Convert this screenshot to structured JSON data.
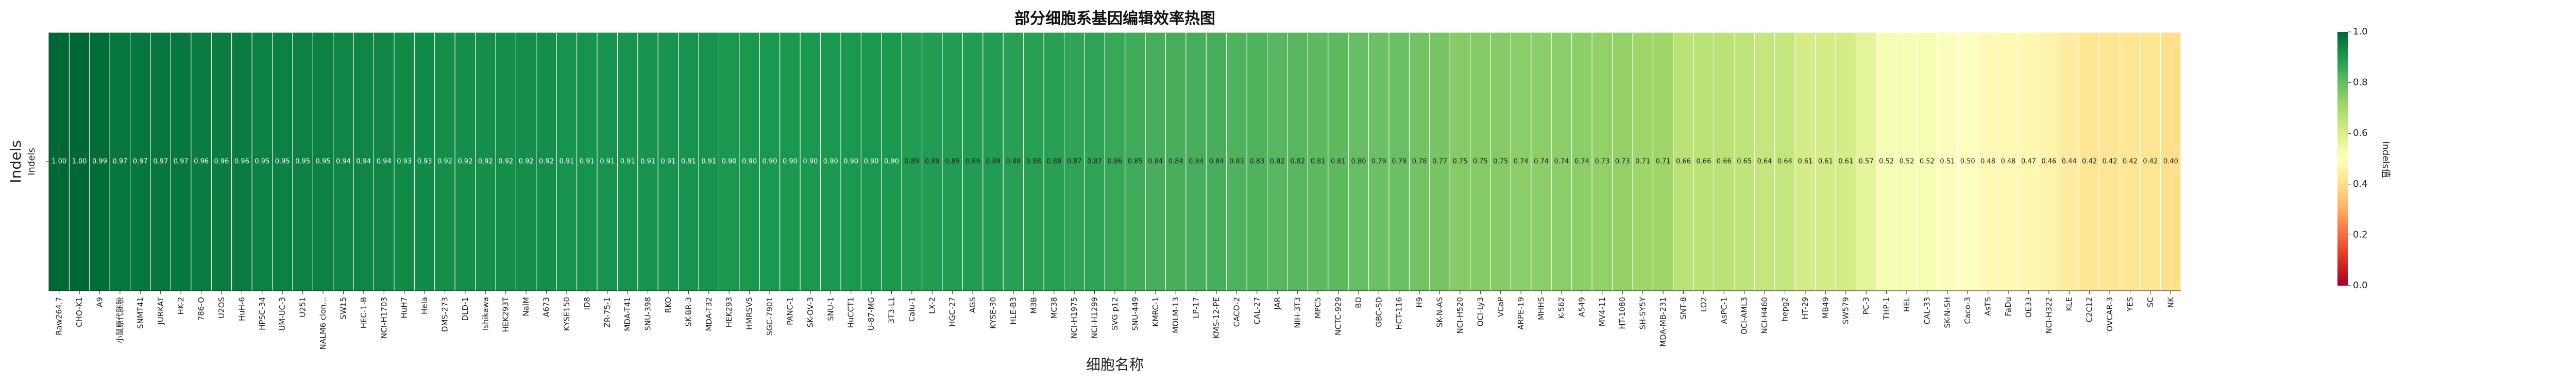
{
  "chart_data": {
    "type": "heatmap",
    "title": "部分细胞系基因编辑效率热图",
    "xlabel": "细胞名称",
    "ylabel": "Indels",
    "y_categories": [
      "Indels"
    ],
    "colorbar": {
      "label": "Indels值",
      "range": [
        0.0,
        1.0
      ],
      "ticks": [
        "0.0",
        "0.2",
        "0.4",
        "0.6",
        "0.8",
        "1.0"
      ],
      "colormap": "RdYlGn"
    },
    "value_labels": [
      "1.00",
      "1.00",
      "0.99",
      "0.97",
      "0.97",
      "0.97",
      "0.97",
      "0.96",
      "0.96",
      "0.96",
      "0.95",
      "0.95",
      "0.95",
      "0.95",
      "0.94",
      "0.94",
      "0.94",
      "0.93",
      "0.93",
      "0.92",
      "0.92",
      "0.92",
      "0.92",
      "0.92",
      "0.92",
      "0.91",
      "0.91",
      "0.91",
      "0.91",
      "0.91",
      "0.91",
      "0.91",
      "0.91",
      "0.90",
      "0.90",
      "0.90",
      "0.90",
      "0.90",
      "0.90",
      "0.90",
      "0.90",
      "0.90",
      "0.89",
      "0.89",
      "0.89",
      "0.89",
      "0.89",
      "0.88",
      "0.88",
      "0.88",
      "0.87",
      "0.87",
      "0.86",
      "0.85",
      "0.84",
      "0.84",
      "0.84",
      "0.84",
      "0.83",
      "0.83",
      "0.82",
      "0.82",
      "0.81",
      "0.81",
      "0.80",
      "0.79",
      "0.79",
      "0.78",
      "0.77",
      "0.75",
      "0.75",
      "0.75",
      "0.74",
      "0.74",
      "0.74",
      "0.74",
      "0.73",
      "0.73",
      "0.71",
      "0.71",
      "0.66",
      "0.66",
      "0.66",
      "0.65",
      "0.64",
      "0.64",
      "0.61",
      "0.61",
      "0.61",
      "0.57",
      "0.52",
      "0.52",
      "0.52",
      "0.51",
      "0.50",
      "0.48",
      "0.48",
      "0.47",
      "0.46",
      "0.44",
      "0.42",
      "0.42",
      "0.42",
      "0.42",
      "0.40"
    ],
    "columns": [
      {
        "name": "Raw264.7",
        "value": 1.0
      },
      {
        "name": "CHO-K1",
        "value": 1.0
      },
      {
        "name": "A9",
        "value": 0.99
      },
      {
        "name": "小鼠原代胚胎",
        "value": 0.97
      },
      {
        "name": "SNMT41",
        "value": 0.97
      },
      {
        "name": "JURKAT",
        "value": 0.97
      },
      {
        "name": "HK-2",
        "value": 0.97
      },
      {
        "name": "786-O",
        "value": 0.96
      },
      {
        "name": "U2OS",
        "value": 0.96
      },
      {
        "name": "HuH-6",
        "value": 0.96
      },
      {
        "name": "HPSC-34",
        "value": 0.95
      },
      {
        "name": "UM-UC-3",
        "value": 0.95
      },
      {
        "name": "U251",
        "value": 0.95
      },
      {
        "name": "NALM6 clon...",
        "value": 0.95
      },
      {
        "name": "SW15",
        "value": 0.94
      },
      {
        "name": "HEC-1-B",
        "value": 0.94
      },
      {
        "name": "NCI-H1703",
        "value": 0.94
      },
      {
        "name": "HuH7",
        "value": 0.93
      },
      {
        "name": "Hela",
        "value": 0.93
      },
      {
        "name": "DMS-273",
        "value": 0.92
      },
      {
        "name": "DLD-1",
        "value": 0.92
      },
      {
        "name": "Ishikawa",
        "value": 0.92
      },
      {
        "name": "HEK293T",
        "value": 0.92
      },
      {
        "name": "NalM",
        "value": 0.92
      },
      {
        "name": "A673",
        "value": 0.92
      },
      {
        "name": "KYSE150",
        "value": 0.91
      },
      {
        "name": "ID8",
        "value": 0.91
      },
      {
        "name": "ZR-75-1",
        "value": 0.91
      },
      {
        "name": "MDA-T41",
        "value": 0.91
      },
      {
        "name": "SNU-398",
        "value": 0.91
      },
      {
        "name": "RKO",
        "value": 0.91
      },
      {
        "name": "SK-BR-3",
        "value": 0.91
      },
      {
        "name": "MDA-T32",
        "value": 0.91
      },
      {
        "name": "HEK293",
        "value": 0.9
      },
      {
        "name": "HMRSV5",
        "value": 0.9
      },
      {
        "name": "SGC-7901",
        "value": 0.9
      },
      {
        "name": "PANC-1",
        "value": 0.9
      },
      {
        "name": "SK-OV-3",
        "value": 0.9
      },
      {
        "name": "SNU-1",
        "value": 0.9
      },
      {
        "name": "HuCCT1",
        "value": 0.9
      },
      {
        "name": "U-87-MG",
        "value": 0.9
      },
      {
        "name": "3T3-L1",
        "value": 0.9
      },
      {
        "name": "Calu-1",
        "value": 0.89
      },
      {
        "name": "LX-2",
        "value": 0.89
      },
      {
        "name": "HGC-27",
        "value": 0.89
      },
      {
        "name": "AGS",
        "value": 0.89
      },
      {
        "name": "KYSE-30",
        "value": 0.89
      },
      {
        "name": "HLE-B3",
        "value": 0.88
      },
      {
        "name": "M3B",
        "value": 0.88
      },
      {
        "name": "MC38",
        "value": 0.88
      },
      {
        "name": "NCI-H1975",
        "value": 0.87
      },
      {
        "name": "NCI-H1299",
        "value": 0.87
      },
      {
        "name": "SVG p12",
        "value": 0.86
      },
      {
        "name": "SNU-449",
        "value": 0.85
      },
      {
        "name": "KMRC-1",
        "value": 0.84
      },
      {
        "name": "MOLM-13",
        "value": 0.84
      },
      {
        "name": "LP-17",
        "value": 0.84
      },
      {
        "name": "KMS-12-PE",
        "value": 0.84
      },
      {
        "name": "CACO-2",
        "value": 0.83
      },
      {
        "name": "CAL-27",
        "value": 0.83
      },
      {
        "name": "JAR",
        "value": 0.82
      },
      {
        "name": "NIH-3T3",
        "value": 0.82
      },
      {
        "name": "MPC5",
        "value": 0.81
      },
      {
        "name": "NCTC-929",
        "value": 0.81
      },
      {
        "name": "BD",
        "value": 0.8
      },
      {
        "name": "GBC-SD",
        "value": 0.79
      },
      {
        "name": "HCT-116",
        "value": 0.79
      },
      {
        "name": "H9",
        "value": 0.78
      },
      {
        "name": "SK-N-AS",
        "value": 0.77
      },
      {
        "name": "NCI-H520",
        "value": 0.75
      },
      {
        "name": "OCI-Ly3",
        "value": 0.75
      },
      {
        "name": "VCaP",
        "value": 0.75
      },
      {
        "name": "ARPE-19",
        "value": 0.74
      },
      {
        "name": "MHHS",
        "value": 0.74
      },
      {
        "name": "K-562",
        "value": 0.74
      },
      {
        "name": "A549",
        "value": 0.74
      },
      {
        "name": "MV4-11",
        "value": 0.73
      },
      {
        "name": "HT-1080",
        "value": 0.73
      },
      {
        "name": "SH-SY5Y",
        "value": 0.71
      },
      {
        "name": "MDA-MB-231",
        "value": 0.71
      },
      {
        "name": "SNT-8",
        "value": 0.66
      },
      {
        "name": "LO2",
        "value": 0.66
      },
      {
        "name": "AsPC-1",
        "value": 0.66
      },
      {
        "name": "OCI-AML3",
        "value": 0.65
      },
      {
        "name": "NCI-H460",
        "value": 0.64
      },
      {
        "name": "hepg2",
        "value": 0.64
      },
      {
        "name": "HT-29",
        "value": 0.61
      },
      {
        "name": "MB49",
        "value": 0.61
      },
      {
        "name": "SW579",
        "value": 0.61
      },
      {
        "name": "PC-3",
        "value": 0.57
      },
      {
        "name": "THP-1",
        "value": 0.52
      },
      {
        "name": "HEL",
        "value": 0.52
      },
      {
        "name": "CAL-33",
        "value": 0.52
      },
      {
        "name": "SK-N-SH",
        "value": 0.51
      },
      {
        "name": "Caco-3",
        "value": 0.5
      },
      {
        "name": "AsTS",
        "value": 0.48
      },
      {
        "name": "FaDu",
        "value": 0.48
      },
      {
        "name": "OE33",
        "value": 0.47
      },
      {
        "name": "NCI-H322",
        "value": 0.46
      },
      {
        "name": "KLE",
        "value": 0.44
      },
      {
        "name": "C2C12",
        "value": 0.42
      },
      {
        "name": "OVCAR-3",
        "value": 0.42
      },
      {
        "name": "YES",
        "value": 0.42
      },
      {
        "name": "SC",
        "value": 0.42
      },
      {
        "name": "NK",
        "value": 0.4
      }
    ]
  }
}
